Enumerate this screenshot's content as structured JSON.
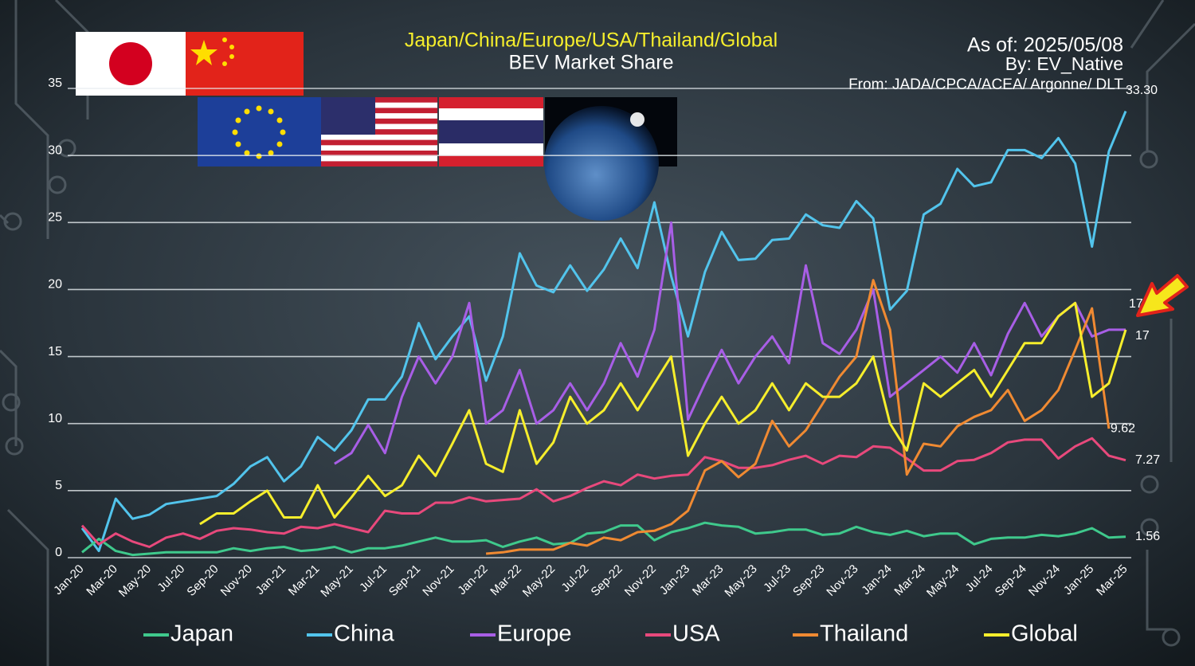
{
  "chart_data": {
    "type": "line",
    "title": "Japan/China/Europe/USA/Thailand/Global",
    "subtitle": "BEV Market Share",
    "annotations": [
      "As of: 2025/05/08",
      "By: EV_Native",
      "From: JADA/CPCA/ACEA/ Argonne/ DLT"
    ],
    "categories": [
      "Jan-20",
      null,
      "Mar-20",
      null,
      "May-20",
      null,
      "Jul-20",
      null,
      "Sep-20",
      null,
      "Nov-20",
      null,
      "Jan-21",
      null,
      "Mar-21",
      null,
      "May-21",
      null,
      "Jul-21",
      null,
      "Sep-21",
      null,
      "Nov-21",
      null,
      "Jan-22",
      null,
      "Mar-22",
      null,
      "May-22",
      null,
      "Jul-22",
      null,
      "Sep-22",
      null,
      "Nov-22",
      null,
      "Jan-23",
      null,
      "Mar-23",
      null,
      "May-23",
      null,
      "Jul-23",
      null,
      "Sep-23",
      null,
      "Nov-23",
      null,
      "Jan-24",
      null,
      "Mar-24",
      null,
      "May-24",
      null,
      "Jul-24",
      null,
      "Sep-24",
      null,
      "Nov-24",
      null,
      "Jan-25",
      null,
      "Mar-25"
    ],
    "series": [
      {
        "name": "Japan",
        "color": "#3fc98c",
        "values": [
          0.4,
          1.4,
          0.5,
          0.2,
          0.3,
          0.4,
          0.4,
          0.4,
          0.4,
          0.7,
          0.5,
          0.7,
          0.8,
          0.5,
          0.6,
          0.8,
          0.4,
          0.7,
          0.7,
          0.9,
          1.2,
          1.5,
          1.2,
          1.2,
          1.3,
          0.8,
          1.2,
          1.5,
          1.0,
          1.1,
          1.8,
          1.9,
          2.4,
          2.4,
          1.3,
          1.9,
          2.2,
          2.6,
          2.4,
          2.3,
          1.8,
          1.9,
          2.1,
          2.1,
          1.7,
          1.8,
          2.3,
          1.9,
          1.7,
          2.0,
          1.6,
          1.8,
          1.8,
          1.0,
          1.4,
          1.5,
          1.5,
          1.7,
          1.6,
          1.8,
          2.2,
          1.5,
          1.56
        ]
      },
      {
        "name": "China",
        "color": "#52c4ec",
        "values": [
          2.2,
          0.5,
          4.4,
          2.9,
          3.2,
          4.0,
          4.2,
          4.4,
          4.6,
          5.5,
          6.8,
          7.5,
          5.7,
          6.8,
          9.0,
          8.0,
          9.5,
          11.8,
          11.8,
          13.5,
          17.5,
          14.8,
          16.5,
          18.0,
          13.2,
          16.5,
          22.7,
          20.3,
          19.8,
          21.8,
          19.9,
          21.5,
          23.8,
          21.6,
          26.5,
          21.0,
          16.5,
          21.3,
          24.3,
          22.2,
          22.3,
          23.7,
          23.8,
          25.6,
          24.8,
          24.6,
          26.6,
          25.3,
          18.5,
          19.9,
          25.6,
          26.4,
          29.0,
          27.7,
          28.0,
          30.4,
          30.4,
          29.8,
          31.3,
          29.4,
          23.2,
          30.3,
          33.3
        ],
        "value_labels": [
          null,
          null,
          null,
          null,
          null,
          null,
          null,
          null,
          null,
          null,
          null,
          null,
          null,
          null,
          null,
          null,
          null,
          null,
          null,
          null,
          null,
          null,
          null,
          null,
          null,
          null,
          null,
          null,
          null,
          null,
          null,
          null,
          null,
          null,
          null,
          null,
          null,
          null,
          null,
          null,
          null,
          null,
          null,
          null,
          null,
          null,
          null,
          null,
          null,
          null,
          null,
          null,
          null,
          null,
          null,
          null,
          null,
          null,
          null,
          null,
          null,
          null,
          "33.30"
        ]
      },
      {
        "name": "Europe",
        "color": "#a85ee6",
        "values": [
          null,
          null,
          null,
          null,
          null,
          null,
          null,
          null,
          null,
          null,
          null,
          null,
          null,
          null,
          null,
          7.0,
          7.8,
          9.9,
          7.8,
          12.0,
          15.0,
          13.0,
          15.0,
          19.0,
          10.0,
          11.0,
          14.0,
          10.0,
          11.0,
          13.0,
          11.0,
          13.0,
          16.0,
          13.5,
          17.0,
          25.0,
          10.3,
          13.0,
          15.5,
          13.0,
          15.0,
          16.5,
          14.5,
          21.8,
          16.0,
          15.2,
          17.0,
          20.0,
          12.0,
          13.0,
          14.0,
          15.0,
          13.8,
          16.0,
          13.6,
          16.7,
          19.0,
          16.5,
          18.0,
          19.0,
          16.5,
          17.0,
          17.0
        ]
      },
      {
        "name": "USA",
        "color": "#e8497c",
        "values": [
          2.4,
          1.0,
          1.8,
          1.2,
          0.8,
          1.5,
          1.8,
          1.4,
          2.0,
          2.2,
          2.1,
          1.9,
          1.8,
          2.3,
          2.2,
          2.5,
          2.2,
          1.9,
          3.5,
          3.3,
          3.3,
          4.1,
          4.1,
          4.5,
          4.2,
          4.3,
          4.4,
          5.1,
          4.2,
          4.6,
          5.2,
          5.7,
          5.4,
          6.2,
          5.9,
          6.1,
          6.2,
          7.5,
          7.2,
          6.7,
          6.7,
          6.9,
          7.3,
          7.6,
          7.0,
          7.6,
          7.5,
          8.3,
          8.2,
          7.4,
          6.5,
          6.5,
          7.2,
          7.3,
          7.8,
          8.6,
          8.8,
          8.8,
          7.4,
          8.3,
          8.9,
          7.6,
          7.27
        ]
      },
      {
        "name": "Thailand",
        "color": "#f08a32",
        "values": [
          null,
          null,
          null,
          null,
          null,
          null,
          null,
          null,
          null,
          null,
          null,
          null,
          null,
          null,
          null,
          null,
          null,
          null,
          null,
          null,
          null,
          null,
          null,
          null,
          0.3,
          0.4,
          0.6,
          0.6,
          0.6,
          1.1,
          0.9,
          1.5,
          1.3,
          1.9,
          2.0,
          2.5,
          3.5,
          6.5,
          7.2,
          6.0,
          7.0,
          10.2,
          8.3,
          9.5,
          11.5,
          13.5,
          15.0,
          20.7,
          17.0,
          6.2,
          8.5,
          8.3,
          9.8,
          10.5,
          11.0,
          12.5,
          10.2,
          11.0,
          12.5,
          15.5,
          18.6,
          9.62,
          null
        ]
      },
      {
        "name": "Global",
        "color": "#f6ee2c",
        "values": [
          null,
          null,
          null,
          null,
          null,
          null,
          null,
          2.5,
          3.3,
          3.3,
          4.2,
          5.0,
          3.0,
          3.0,
          5.4,
          3.0,
          4.5,
          6.1,
          4.6,
          5.4,
          7.6,
          6.1,
          8.5,
          11.0,
          7.0,
          6.4,
          11.0,
          7.0,
          8.6,
          12.0,
          10.0,
          11.0,
          13.0,
          11.0,
          13.0,
          15.0,
          7.6,
          10.0,
          12.0,
          10.0,
          11.0,
          13.0,
          11.0,
          13.0,
          12.0,
          12.0,
          13.0,
          15.0,
          10.0,
          8.0,
          13.0,
          12.0,
          13.0,
          14.0,
          12.0,
          14.0,
          16.0,
          16.0,
          18.0,
          19.0,
          12.0,
          13.0,
          17.0
        ]
      }
    ],
    "ylim": [
      0,
      35
    ],
    "yticks": [
      0,
      5,
      10,
      15,
      20,
      25,
      30,
      35
    ],
    "grid": true,
    "legend": "bottom"
  }
}
